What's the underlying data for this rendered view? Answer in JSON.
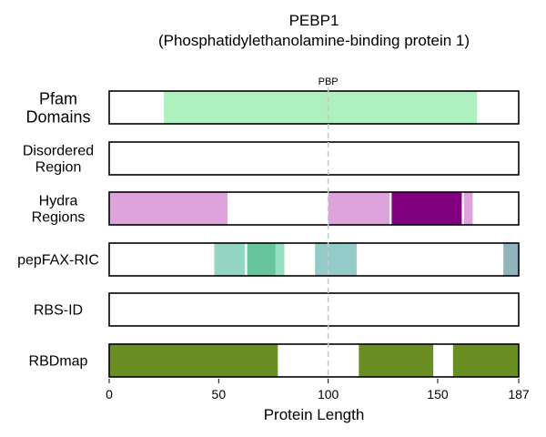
{
  "chart_data": {
    "type": "bar",
    "title": "PEBP1",
    "subtitle": "(Phosphatidylethanolamine-binding protein 1)",
    "xlabel": "Protein Length",
    "xlim": [
      0,
      187
    ],
    "xticks": [
      0,
      50,
      100,
      150,
      187
    ],
    "grid": false,
    "reference_line": {
      "x": 100,
      "style": "dashed",
      "color": "#c8c8c8"
    },
    "tracks": [
      {
        "label_lines": [
          "Pfam",
          "Domains"
        ],
        "segments": [
          {
            "start": 25,
            "end": 168,
            "color": "#aef0be",
            "label": "PBP"
          }
        ]
      },
      {
        "label_lines": [
          "Disordered",
          "Region"
        ],
        "segments": []
      },
      {
        "label_lines": [
          "Hydra",
          "Regions"
        ],
        "segments": [
          {
            "start": 0,
            "end": 54,
            "color": "#dea3dc"
          },
          {
            "start": 100,
            "end": 128,
            "color": "#dea3dc"
          },
          {
            "start": 129,
            "end": 161,
            "color": "#800080"
          },
          {
            "start": 162,
            "end": 166,
            "color": "#dea3dc"
          }
        ]
      },
      {
        "label_lines": [
          "pepFAX-RIC"
        ],
        "segments": [
          {
            "start": 48,
            "end": 62,
            "color": "#95d5c3"
          },
          {
            "start": 63,
            "end": 76,
            "color": "#66c59b"
          },
          {
            "start": 76,
            "end": 80,
            "color": "#95e0c3"
          },
          {
            "start": 94,
            "end": 113,
            "color": "#93cbc8"
          },
          {
            "start": 180,
            "end": 187,
            "color": "#90b5bd"
          }
        ]
      },
      {
        "label_lines": [
          "RBS-ID"
        ],
        "segments": []
      },
      {
        "label_lines": [
          "RBDmap"
        ],
        "segments": [
          {
            "start": 0,
            "end": 77,
            "color": "#6b8e23"
          },
          {
            "start": 114,
            "end": 148,
            "color": "#6b8e23"
          },
          {
            "start": 157,
            "end": 187,
            "color": "#6b8e23"
          }
        ]
      }
    ]
  }
}
